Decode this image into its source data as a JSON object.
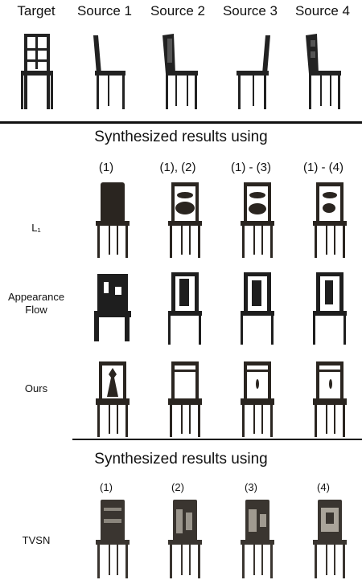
{
  "top_headers": [
    "Target",
    "Source 1",
    "Source 2",
    "Source 3",
    "Source 4"
  ],
  "section1": {
    "title": "Synthesized results using",
    "columns": [
      "(1)",
      "(1), (2)",
      "(1) - (3)",
      "(1) - (4)"
    ],
    "rows": [
      {
        "label": "L₁"
      },
      {
        "label": "Appearance Flow",
        "line1": "Appearance",
        "line2": "Flow"
      },
      {
        "label": "Ours"
      }
    ]
  },
  "section2": {
    "title": "Synthesized results using",
    "columns": [
      "(1)",
      "(2)",
      "(3)",
      "(4)"
    ],
    "rows": [
      {
        "label": "TVSN"
      }
    ]
  }
}
